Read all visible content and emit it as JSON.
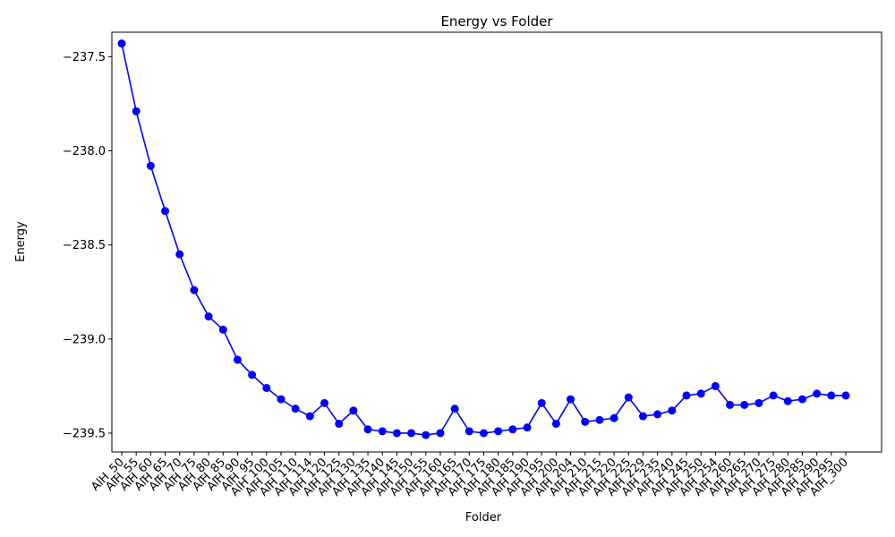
{
  "chart_data": {
    "type": "line",
    "title": "Energy vs Folder",
    "xlabel": "Folder",
    "ylabel": "Energy",
    "ylim": [
      -239.6,
      -237.37
    ],
    "yticks": [
      -237.5,
      -238.0,
      -238.5,
      -239.0,
      -239.5
    ],
    "ytick_labels": [
      "−237.5",
      "−238.0",
      "−238.5",
      "−239.0",
      "−239.5"
    ],
    "grid": false,
    "legend": "none",
    "color": "#0000ff",
    "categories": [
      "AlH_50",
      "AlH_55",
      "AlH_60",
      "AlH_65",
      "AlH_70",
      "AlH_75",
      "AlH_80",
      "AlH_85",
      "AlH_90",
      "AlH_95",
      "AlH_100",
      "AlH_105",
      "AlH_110",
      "AlH_114",
      "AlH_120",
      "AlH_125",
      "AlH_130",
      "AlH_135",
      "AlH_140",
      "AlH_145",
      "AlH_150",
      "AlH_155",
      "AlH_160",
      "AlH_165",
      "AlH_170",
      "AlH_175",
      "AlH_180",
      "AlH_185",
      "AlH_190",
      "AlH_195",
      "AlH_200",
      "AlH_204",
      "AlH_210",
      "AlH_215",
      "AlH_220",
      "AlH_225",
      "AlH_229",
      "AlH_235",
      "AlH_240",
      "AlH_245",
      "AlH_250",
      "AlH_254",
      "AlH_260",
      "AlH_265",
      "AlH_270",
      "AlH_275",
      "AlH_280",
      "AlH_285",
      "AlH_290",
      "AlH_295",
      "AlH_300"
    ],
    "values": [
      -237.43,
      -237.79,
      -238.08,
      -238.32,
      -238.55,
      -238.74,
      -238.88,
      -238.95,
      -239.11,
      -239.19,
      -239.26,
      -239.32,
      -239.37,
      -239.41,
      -239.34,
      -239.45,
      -239.38,
      -239.48,
      -239.49,
      -239.5,
      -239.5,
      -239.51,
      -239.5,
      -239.37,
      -239.49,
      -239.5,
      -239.49,
      -239.48,
      -239.47,
      -239.34,
      -239.45,
      -239.32,
      -239.44,
      -239.43,
      -239.42,
      -239.31,
      -239.41,
      -239.4,
      -239.38,
      -239.3,
      -239.29,
      -239.25,
      -239.35,
      -239.35,
      -239.34,
      -239.3,
      -239.33,
      -239.32,
      -239.29,
      -239.3,
      -239.3
    ]
  }
}
